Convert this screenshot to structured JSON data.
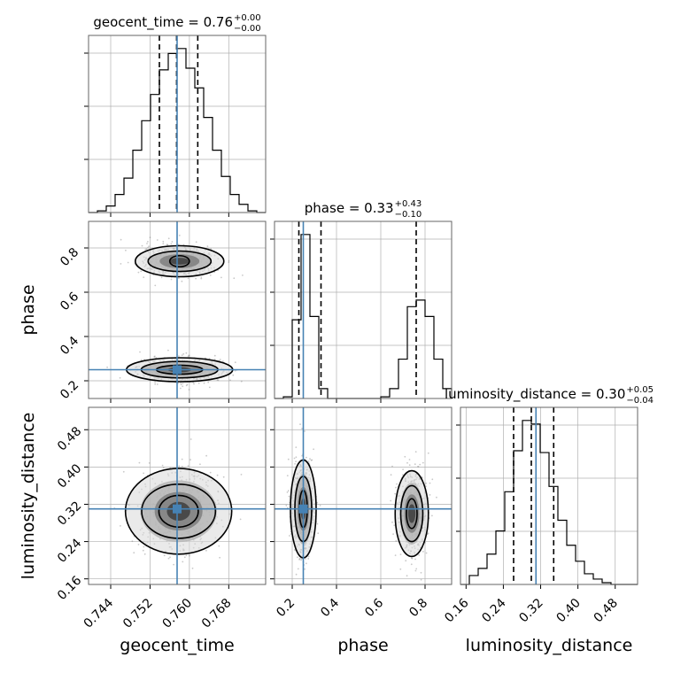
{
  "chart_data": {
    "type": "corner",
    "parameters": [
      "geocent_time",
      "phase",
      "luminosity_distance"
    ],
    "truths": {
      "geocent_time": 0.7575,
      "phase": 0.25,
      "luminosity_distance": 0.31
    },
    "axes": {
      "geocent_time": {
        "range": [
          0.7395,
          0.7755
        ],
        "ticks": [
          0.744,
          0.752,
          0.76,
          0.768
        ],
        "tick_labels": [
          "0.744",
          "0.752",
          "0.760",
          "0.768"
        ],
        "label": "geocent_time"
      },
      "phase": {
        "range": [
          0.12,
          0.92
        ],
        "ticks": [
          0.2,
          0.4,
          0.6,
          0.8
        ],
        "tick_labels": [
          "0.2",
          "0.4",
          "0.6",
          "0.8"
        ],
        "label": "phase"
      },
      "luminosity_distance": {
        "range": [
          0.148,
          0.528
        ],
        "ticks": [
          0.16,
          0.24,
          0.32,
          0.4,
          0.48
        ],
        "tick_labels": [
          "0.16",
          "0.24",
          "0.32",
          "0.40",
          "0.48"
        ],
        "label": "luminosity_distance"
      }
    },
    "titles": [
      {
        "param": "geocent_time",
        "text": "geocent_time = 0.76",
        "sup": "+0.00",
        "sub": "−0.00"
      },
      {
        "param": "phase",
        "text": "phase = 0.33",
        "sup": "+0.43",
        "sub": "−0.10"
      },
      {
        "param": "luminosity_distance",
        "text": "luminosity_distance = 0.30",
        "sup": "+0.05",
        "sub": "−0.04"
      }
    ],
    "histograms": {
      "geocent_time": {
        "edges": [
          0.7395,
          0.7413,
          0.7431,
          0.7449,
          0.7467,
          0.7485,
          0.7503,
          0.7521,
          0.7539,
          0.7557,
          0.7575,
          0.7593,
          0.7611,
          0.7629,
          0.7647,
          0.7665,
          0.7683,
          0.7701,
          0.7719,
          0.7737,
          0.7755
        ],
        "counts": [
          0,
          1,
          4,
          11,
          21,
          38,
          56,
          72,
          87,
          97,
          100,
          88,
          76,
          58,
          38,
          22,
          11,
          5,
          1,
          0
        ],
        "quantiles": [
          0.7539,
          0.7574,
          0.7617
        ]
      },
      "phase": {
        "edges": [
          0.12,
          0.16,
          0.2,
          0.24,
          0.28,
          0.32,
          0.36,
          0.4,
          0.44,
          0.48,
          0.52,
          0.56,
          0.6,
          0.64,
          0.68,
          0.72,
          0.76,
          0.8,
          0.84,
          0.88,
          0.92
        ],
        "counts": [
          0,
          1,
          48,
          100,
          50,
          6,
          0,
          0,
          0,
          0,
          0,
          0,
          1,
          6,
          24,
          56,
          60,
          50,
          24,
          6
        ],
        "quantiles": [
          0.23,
          0.33,
          0.76
        ]
      },
      "luminosity_distance": {
        "edges": [
          0.148,
          0.167,
          0.186,
          0.205,
          0.224,
          0.243,
          0.262,
          0.281,
          0.3,
          0.319,
          0.338,
          0.357,
          0.376,
          0.395,
          0.414,
          0.433,
          0.452,
          0.471,
          0.49,
          0.509,
          0.528
        ],
        "counts": [
          0,
          5,
          9,
          17,
          30,
          52,
          75,
          92,
          90,
          74,
          55,
          36,
          22,
          13,
          6,
          3,
          1,
          0,
          0,
          0
        ],
        "quantiles": [
          0.262,
          0.3,
          0.348
        ]
      }
    },
    "scatter_2d": [
      {
        "x": "geocent_time",
        "y": "phase",
        "modes": [
          {
            "cx": 0.758,
            "cy": 0.25,
            "sx": 0.004,
            "sy": 0.028,
            "levels": [
              {
                "rx": 0.0108,
                "ry": 0.054
              },
              {
                "rx": 0.0078,
                "ry": 0.037
              },
              {
                "rx": 0.0047,
                "ry": 0.02
              }
            ]
          },
          {
            "cx": 0.758,
            "cy": 0.74,
            "sx": 0.0036,
            "sy": 0.035,
            "levels": [
              {
                "rx": 0.009,
                "ry": 0.07
              },
              {
                "rx": 0.0064,
                "ry": 0.046
              },
              {
                "rx": 0.002,
                "ry": 0.025
              }
            ]
          }
        ]
      },
      {
        "x": "geocent_time",
        "y": "luminosity_distance",
        "modes": [
          {
            "cx": 0.7578,
            "cy": 0.305,
            "sx": 0.004,
            "sy": 0.045,
            "levels": [
              {
                "rx": 0.0108,
                "ry": 0.092
              },
              {
                "rx": 0.0075,
                "ry": 0.058
              },
              {
                "rx": 0.004,
                "ry": 0.034
              }
            ]
          }
        ]
      },
      {
        "x": "phase",
        "y": "luminosity_distance",
        "modes": [
          {
            "cx": 0.25,
            "cy": 0.31,
            "sx": 0.025,
            "sy": 0.05,
            "levels": [
              {
                "rx": 0.058,
                "ry": 0.105
              },
              {
                "rx": 0.038,
                "ry": 0.07
              },
              {
                "rx": 0.018,
                "ry": 0.04
              }
            ]
          },
          {
            "cx": 0.74,
            "cy": 0.3,
            "sx": 0.032,
            "sy": 0.045,
            "levels": [
              {
                "rx": 0.075,
                "ry": 0.092
              },
              {
                "rx": 0.05,
                "ry": 0.06
              },
              {
                "rx": 0.024,
                "ry": 0.032
              }
            ]
          }
        ]
      }
    ],
    "colors": {
      "truth": "#4682b4",
      "hist": "#000000",
      "grid": "#b0b0b0",
      "scatter": "#888888"
    },
    "grid": true
  }
}
